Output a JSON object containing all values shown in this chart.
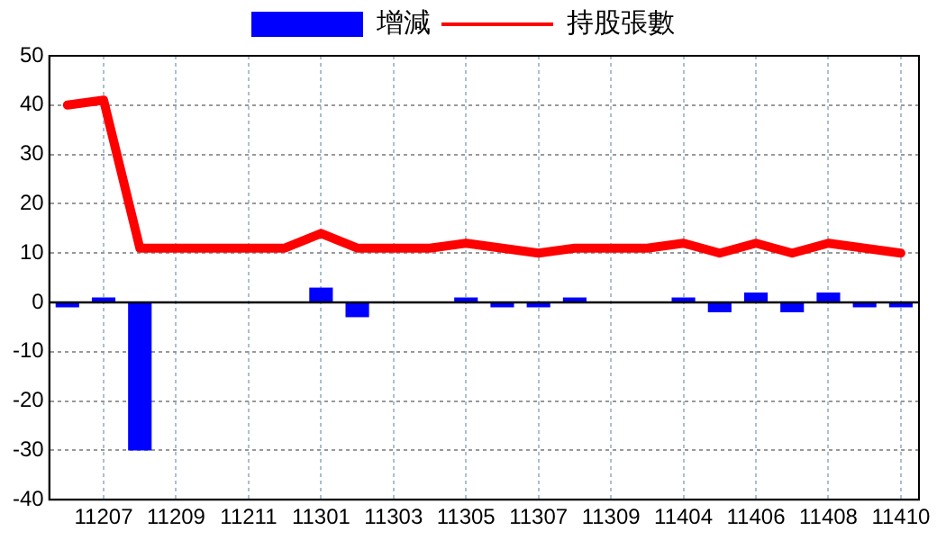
{
  "chart_data": {
    "type": "bar",
    "categories": [
      null,
      "11207",
      null,
      "11209",
      null,
      "11211",
      null,
      "11301",
      null,
      "11303",
      null,
      "11305",
      null,
      "11307",
      null,
      "11309",
      null,
      "11404",
      null,
      "11406",
      null,
      "11408",
      null,
      "11410"
    ],
    "series": [
      {
        "name": "增減",
        "color": "#0000ff",
        "values": [
          -1,
          1,
          -30,
          0,
          0,
          0,
          0,
          3,
          -3,
          0,
          0,
          1,
          -1,
          -1,
          1,
          0,
          0,
          1,
          -2,
          2,
          -2,
          2,
          -1,
          -1
        ]
      },
      {
        "name": "持股張數",
        "type": "line",
        "color": "#ff0000",
        "values": [
          40,
          41,
          11,
          11,
          11,
          11,
          11,
          14,
          11,
          11,
          11,
          12,
          11,
          10,
          11,
          11,
          11,
          12,
          10,
          12,
          10,
          12,
          11,
          10
        ]
      }
    ],
    "ylim": [
      -40,
      50
    ],
    "yticks": [
      -40,
      -30,
      -20,
      -10,
      0,
      10,
      20,
      30,
      40,
      50
    ],
    "ref_lines": [
      {
        "axis": "y",
        "value": 0,
        "color": "#000000",
        "line_style": "solid"
      }
    ],
    "grid": true,
    "legend": "top",
    "marker": "none"
  }
}
